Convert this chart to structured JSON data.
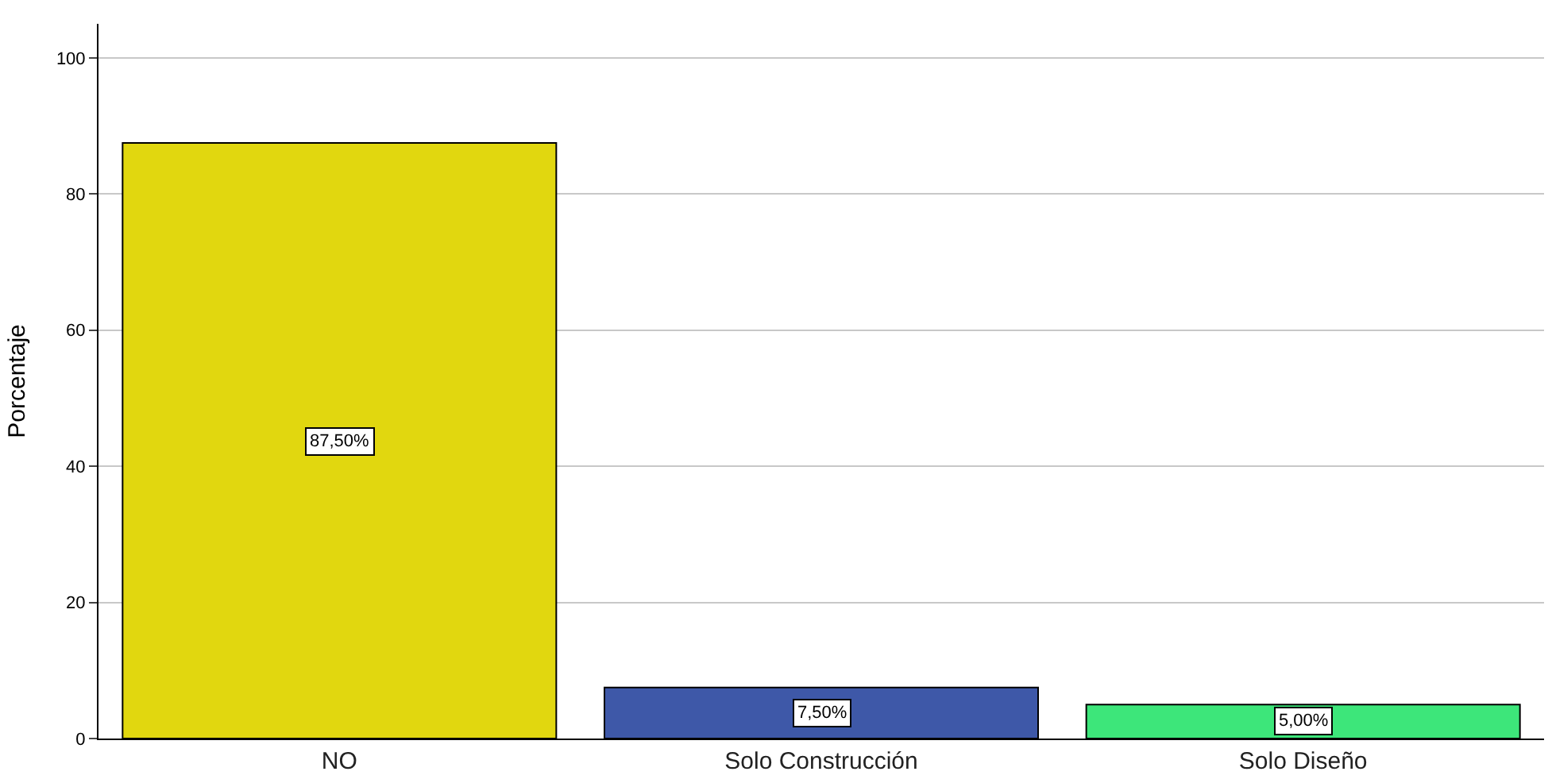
{
  "chart_data": {
    "type": "bar",
    "ylabel": "Porcentaje",
    "categories": [
      "NO",
      "Solo Construcción",
      "Solo Diseño"
    ],
    "values": [
      87.5,
      7.5,
      5.0
    ],
    "colors": [
      "#e1d70f",
      "#3e58a8",
      "#3de67a"
    ],
    "value_labels": [
      "87,50%",
      "7,50%",
      "5,00%"
    ],
    "ylim": [
      0,
      105
    ],
    "yticks": [
      0,
      20,
      40,
      60,
      80,
      100
    ],
    "grid": "y",
    "legend": false
  }
}
